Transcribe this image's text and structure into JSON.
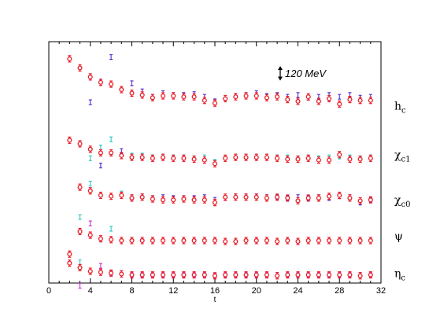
{
  "chart_data": {
    "type": "scatter",
    "title": "",
    "xlabel": "t",
    "ylabel": "",
    "xlim": [
      0,
      32
    ],
    "ylim": [
      0,
      13.35
    ],
    "x_ticks": [
      "0",
      "4",
      "8",
      "12",
      "16",
      "20",
      "24",
      "28",
      "32"
    ],
    "y_ticks": [],
    "grid": false,
    "legend": "none",
    "scale_indicator": {
      "label": "120 MeV",
      "y_from": 11.2,
      "y_to": 12.0
    },
    "errorbar_halfwidth": 0.15,
    "colors": {
      "red": "#e8202a",
      "blue": "#5b2fd0",
      "cyan": "#37c8c8",
      "magenta": "#c735d6"
    },
    "series_labels": [
      {
        "base": "h",
        "sub": "c",
        "y": 9.8
      },
      {
        "base": "χ",
        "sub": "c1",
        "y": 7.1
      },
      {
        "base": "χ",
        "sub": "c0",
        "y": 4.6
      },
      {
        "base": "ψ",
        "sub": "",
        "y": 2.6
      },
      {
        "base": "η",
        "sub": "c",
        "y": 0.55
      }
    ],
    "series": [
      {
        "color": "#e8202a",
        "marker": "circle",
        "points": [
          [
            2,
            12.4
          ],
          [
            3,
            11.9
          ],
          [
            4,
            11.4
          ],
          [
            5,
            11.1
          ],
          [
            6,
            11.0
          ],
          [
            7,
            10.7
          ],
          [
            8,
            10.5
          ],
          [
            9,
            10.4
          ],
          [
            10,
            10.25
          ],
          [
            11,
            10.35
          ],
          [
            12,
            10.35
          ],
          [
            13,
            10.3
          ],
          [
            14,
            10.3
          ],
          [
            15,
            10.1
          ],
          [
            16,
            9.95
          ],
          [
            17,
            10.2
          ],
          [
            18,
            10.3
          ],
          [
            19,
            10.35
          ],
          [
            20,
            10.35
          ],
          [
            21,
            10.25
          ],
          [
            22,
            10.3
          ],
          [
            23,
            10.15
          ],
          [
            24,
            10.05
          ],
          [
            25,
            10.3
          ],
          [
            26,
            10.05
          ],
          [
            27,
            10.2
          ],
          [
            28,
            9.9
          ],
          [
            29,
            10.15
          ],
          [
            30,
            10.1
          ],
          [
            31,
            10.1
          ]
        ]
      },
      {
        "color": "#5b2fd0",
        "marker": "bar",
        "points": [
          [
            4,
            10.0
          ],
          [
            5,
            11.15
          ],
          [
            6,
            12.5
          ],
          [
            8,
            11.05
          ],
          [
            9,
            10.6
          ],
          [
            10,
            10.3
          ],
          [
            11,
            10.5
          ],
          [
            12,
            10.4
          ],
          [
            13,
            10.4
          ],
          [
            14,
            10.45
          ],
          [
            15,
            10.3
          ],
          [
            16,
            10.05
          ],
          [
            18,
            10.35
          ],
          [
            19,
            10.4
          ],
          [
            20,
            10.5
          ],
          [
            21,
            10.35
          ],
          [
            22,
            10.4
          ],
          [
            23,
            10.3
          ],
          [
            24,
            10.4
          ],
          [
            25,
            10.25
          ],
          [
            26,
            10.3
          ],
          [
            27,
            10.4
          ],
          [
            28,
            10.3
          ],
          [
            29,
            10.4
          ],
          [
            30,
            10.25
          ],
          [
            31,
            10.3
          ]
        ]
      },
      {
        "color": "#e8202a",
        "marker": "circle",
        "points": [
          [
            2,
            7.9
          ],
          [
            3,
            7.7
          ],
          [
            4,
            7.4
          ],
          [
            5,
            7.2
          ],
          [
            6,
            7.2
          ],
          [
            7,
            7.05
          ],
          [
            8,
            6.95
          ],
          [
            9,
            6.95
          ],
          [
            10,
            6.9
          ],
          [
            11,
            6.95
          ],
          [
            12,
            6.9
          ],
          [
            13,
            6.9
          ],
          [
            14,
            6.85
          ],
          [
            15,
            6.8
          ],
          [
            16,
            6.6
          ],
          [
            17,
            6.9
          ],
          [
            18,
            6.95
          ],
          [
            19,
            6.95
          ],
          [
            20,
            6.95
          ],
          [
            21,
            6.95
          ],
          [
            22,
            6.9
          ],
          [
            23,
            6.85
          ],
          [
            24,
            6.85
          ],
          [
            25,
            6.9
          ],
          [
            26,
            6.8
          ],
          [
            27,
            6.8
          ],
          [
            28,
            7.1
          ],
          [
            29,
            6.85
          ],
          [
            30,
            6.85
          ],
          [
            31,
            6.9
          ]
        ]
      },
      {
        "color": "#37c8c8",
        "marker": "bar",
        "points": [
          [
            4,
            6.9
          ],
          [
            5,
            7.5
          ],
          [
            6,
            7.95
          ],
          [
            8,
            7.05
          ],
          [
            9,
            7.05
          ],
          [
            10,
            6.95
          ],
          [
            11,
            7.0
          ],
          [
            12,
            6.95
          ],
          [
            13,
            6.95
          ],
          [
            14,
            6.9
          ],
          [
            15,
            6.95
          ],
          [
            16,
            6.7
          ],
          [
            18,
            7.0
          ],
          [
            19,
            7.0
          ],
          [
            20,
            7.0
          ],
          [
            21,
            7.0
          ],
          [
            22,
            6.95
          ],
          [
            23,
            6.95
          ],
          [
            24,
            6.9
          ],
          [
            25,
            6.95
          ],
          [
            26,
            6.9
          ],
          [
            27,
            6.95
          ],
          [
            28,
            7.0
          ],
          [
            29,
            6.95
          ],
          [
            30,
            6.9
          ],
          [
            31,
            6.95
          ]
        ]
      },
      {
        "color": "#5b2fd0",
        "marker": "bar",
        "points": [
          [
            5,
            6.5
          ],
          [
            7,
            7.3
          ],
          [
            8,
            4.75
          ],
          [
            9,
            4.8
          ],
          [
            10,
            4.7
          ],
          [
            11,
            4.75
          ],
          [
            12,
            4.7
          ],
          [
            13,
            4.7
          ],
          [
            14,
            4.7
          ],
          [
            15,
            4.75
          ],
          [
            16,
            4.6
          ],
          [
            17,
            4.7
          ],
          [
            18,
            4.8
          ],
          [
            19,
            4.8
          ],
          [
            20,
            4.8
          ],
          [
            21,
            4.75
          ],
          [
            22,
            4.75
          ],
          [
            23,
            4.7
          ],
          [
            24,
            4.75
          ],
          [
            25,
            4.7
          ],
          [
            26,
            4.75
          ],
          [
            27,
            4.7
          ],
          [
            28,
            4.8
          ],
          [
            29,
            4.75
          ],
          [
            30,
            4.45
          ],
          [
            31,
            4.6
          ]
        ]
      },
      {
        "color": "#37c8c8",
        "marker": "bar",
        "points": [
          [
            3,
            3.65
          ],
          [
            4,
            5.5
          ],
          [
            6,
            3.0
          ],
          [
            7,
            4.95
          ]
        ]
      },
      {
        "color": "#c735d6",
        "marker": "bar",
        "points": [
          [
            4,
            3.3
          ]
        ]
      },
      {
        "color": "#e8202a",
        "marker": "circle",
        "points": [
          [
            3,
            5.3
          ],
          [
            4,
            5.1
          ],
          [
            5,
            4.85
          ],
          [
            6,
            4.8
          ],
          [
            7,
            4.85
          ],
          [
            8,
            4.7
          ],
          [
            9,
            4.75
          ],
          [
            10,
            4.65
          ],
          [
            11,
            4.6
          ],
          [
            12,
            4.6
          ],
          [
            13,
            4.65
          ],
          [
            14,
            4.6
          ],
          [
            15,
            4.6
          ],
          [
            16,
            4.45
          ],
          [
            17,
            4.75
          ],
          [
            18,
            4.75
          ],
          [
            19,
            4.75
          ],
          [
            20,
            4.75
          ],
          [
            21,
            4.7
          ],
          [
            22,
            4.75
          ],
          [
            23,
            4.7
          ],
          [
            24,
            4.55
          ],
          [
            25,
            4.7
          ],
          [
            26,
            4.7
          ],
          [
            27,
            4.8
          ],
          [
            28,
            4.85
          ],
          [
            29,
            4.7
          ],
          [
            30,
            4.55
          ],
          [
            31,
            4.6
          ]
        ]
      },
      {
        "color": "#e8202a",
        "marker": "circle",
        "points": [
          [
            2,
            1.6
          ],
          [
            3,
            2.85
          ],
          [
            4,
            2.65
          ],
          [
            5,
            2.45
          ],
          [
            6,
            2.4
          ],
          [
            7,
            2.35
          ],
          [
            8,
            2.35
          ],
          [
            9,
            2.35
          ],
          [
            10,
            2.35
          ],
          [
            11,
            2.35
          ],
          [
            12,
            2.35
          ],
          [
            13,
            2.35
          ],
          [
            14,
            2.35
          ],
          [
            15,
            2.35
          ],
          [
            16,
            2.35
          ],
          [
            17,
            2.3
          ],
          [
            18,
            2.3
          ],
          [
            19,
            2.35
          ],
          [
            20,
            2.35
          ],
          [
            21,
            2.35
          ],
          [
            22,
            2.3
          ],
          [
            23,
            2.35
          ],
          [
            24,
            2.3
          ],
          [
            25,
            2.35
          ],
          [
            26,
            2.35
          ],
          [
            27,
            2.35
          ],
          [
            28,
            2.35
          ],
          [
            29,
            2.35
          ],
          [
            30,
            2.35
          ],
          [
            31,
            2.35
          ]
        ]
      },
      {
        "color": "#e8202a",
        "marker": "circle",
        "points": [
          [
            2,
            1.1
          ],
          [
            3,
            0.85
          ],
          [
            4,
            0.65
          ],
          [
            5,
            0.6
          ],
          [
            6,
            0.55
          ],
          [
            7,
            0.5
          ],
          [
            8,
            0.45
          ],
          [
            9,
            0.45
          ],
          [
            10,
            0.45
          ],
          [
            11,
            0.45
          ],
          [
            12,
            0.45
          ],
          [
            13,
            0.45
          ],
          [
            14,
            0.45
          ],
          [
            15,
            0.45
          ],
          [
            16,
            0.4
          ],
          [
            17,
            0.45
          ],
          [
            18,
            0.45
          ],
          [
            19,
            0.45
          ],
          [
            20,
            0.45
          ],
          [
            21,
            0.45
          ],
          [
            22,
            0.4
          ],
          [
            23,
            0.45
          ],
          [
            24,
            0.45
          ],
          [
            25,
            0.45
          ],
          [
            26,
            0.45
          ],
          [
            27,
            0.45
          ],
          [
            28,
            0.45
          ],
          [
            29,
            0.45
          ],
          [
            30,
            0.4
          ],
          [
            31,
            0.45
          ]
        ]
      },
      {
        "color": "#37c8c8",
        "marker": "bar",
        "points": [
          [
            3,
            1.15
          ]
        ]
      },
      {
        "color": "#c735d6",
        "marker": "bar",
        "points": [
          [
            3,
            -0.15
          ],
          [
            5,
            0.95
          ],
          [
            6,
            0.55
          ],
          [
            7,
            0.55
          ],
          [
            8,
            0.45
          ],
          [
            9,
            0.45
          ],
          [
            10,
            0.45
          ],
          [
            11,
            0.45
          ],
          [
            12,
            0.45
          ],
          [
            13,
            0.45
          ],
          [
            14,
            0.45
          ],
          [
            15,
            0.45
          ],
          [
            16,
            0.4
          ],
          [
            17,
            0.45
          ],
          [
            18,
            0.45
          ],
          [
            19,
            0.45
          ],
          [
            20,
            0.45
          ],
          [
            21,
            0.45
          ],
          [
            22,
            0.45
          ],
          [
            23,
            0.45
          ],
          [
            24,
            0.45
          ],
          [
            25,
            0.45
          ],
          [
            26,
            0.45
          ],
          [
            27,
            0.45
          ],
          [
            28,
            0.45
          ],
          [
            29,
            0.45
          ],
          [
            30,
            0.45
          ],
          [
            31,
            0.45
          ]
        ]
      }
    ]
  }
}
